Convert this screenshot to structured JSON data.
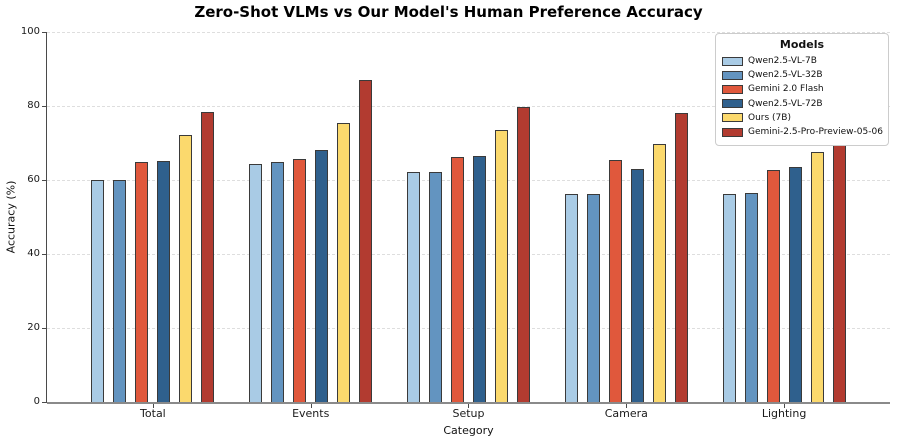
{
  "chart_data": {
    "type": "bar",
    "title": "Zero-Shot VLMs vs Our Model's Human Preference Accuracy",
    "xlabel": "Category",
    "ylabel": "Accuracy (%)",
    "ylim": [
      0,
      100
    ],
    "yticks": [
      0,
      20,
      40,
      60,
      80,
      100
    ],
    "grid": "horizontal-dashed",
    "legend_title": "Models",
    "legend_position": "upper-right",
    "categories": [
      "Total",
      "Events",
      "Setup",
      "Camera",
      "Lighting"
    ],
    "series": [
      {
        "name": "Qwen2.5-VL-7B",
        "color": "#a9cbe5",
        "values": [
          59.9,
          64.3,
          62.2,
          56.1,
          56.1
        ]
      },
      {
        "name": "Qwen2.5-VL-32B",
        "color": "#6394c0",
        "values": [
          60.0,
          64.8,
          62.3,
          56.1,
          56.5
        ]
      },
      {
        "name": "Gemini 2.0 Flash",
        "color": "#e0583c",
        "values": [
          64.9,
          65.7,
          66.2,
          65.3,
          62.7
        ]
      },
      {
        "name": "Qwen2.5-VL-72B",
        "color": "#2f608d",
        "values": [
          65.2,
          68.0,
          66.5,
          63.0,
          63.4
        ]
      },
      {
        "name": "Ours (7B)",
        "color": "#fbd96d",
        "values": [
          72.3,
          75.4,
          73.5,
          69.6,
          67.7
        ]
      },
      {
        "name": "Gemini-2.5-Pro-Preview-05-06",
        "color": "#b23b30",
        "values": [
          78.5,
          87.0,
          79.7,
          78.0,
          70.0
        ]
      }
    ]
  }
}
